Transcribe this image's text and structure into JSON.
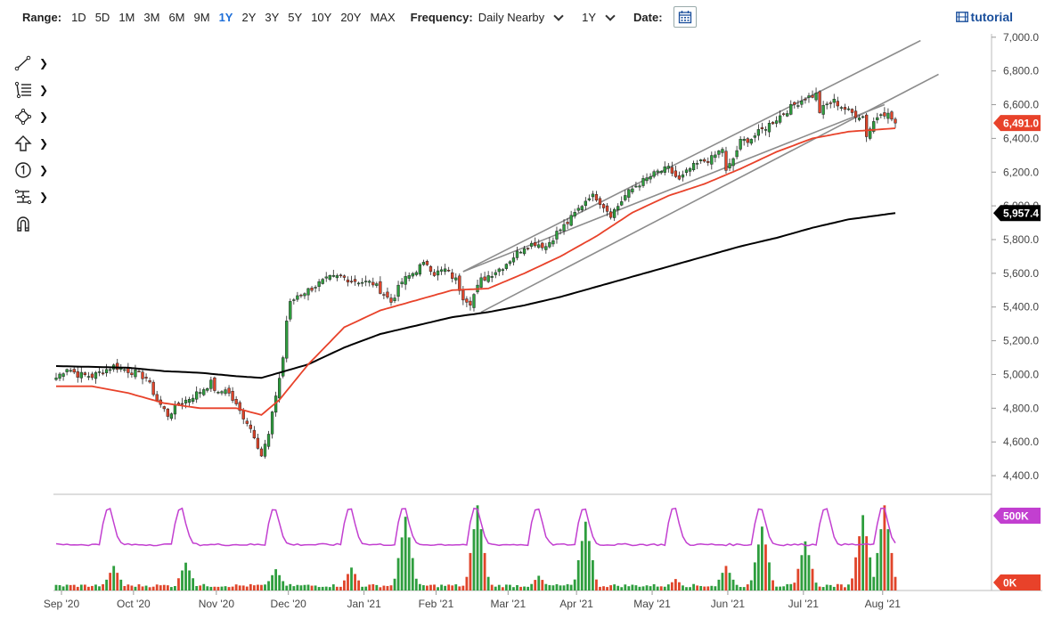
{
  "toolbar": {
    "range_label": "Range:",
    "ranges": [
      "1D",
      "5D",
      "1M",
      "3M",
      "6M",
      "9M",
      "1Y",
      "2Y",
      "3Y",
      "5Y",
      "10Y",
      "20Y",
      "MAX"
    ],
    "active_range": "1Y",
    "frequency_label": "Frequency:",
    "frequency_value": "Daily Nearby",
    "period_value": "1Y",
    "date_label": "Date:",
    "tutorial_label": "tutorial"
  },
  "colors": {
    "up": "#2e9e3e",
    "down": "#e0452a",
    "ma_fast": "#e8422a",
    "ma_slow": "#000000",
    "volume_line": "#c23fd0",
    "channel": "#8c8c8c",
    "last_price_badge": "#e8422a",
    "ma_badge": "#000000",
    "volume_badge": "#c23fd0",
    "active": "#1e6fd9"
  },
  "chart_data": {
    "type": "candlestick",
    "x_ticks": [
      "Sep '20",
      "Oct '20",
      "Nov '20",
      "Dec '20",
      "Jan '21",
      "Feb '21",
      "Mar '21",
      "Apr '21",
      "May '21",
      "Jun '21",
      "Jul '21",
      "Aug '21"
    ],
    "y_ticks": [
      "4,400.0",
      "4,600.0",
      "4,800.0",
      "5,000.0",
      "5,200.0",
      "5,400.0",
      "5,600.0",
      "5,800.0",
      "6,000.0",
      "6,200.0",
      "6,400.0",
      "6,600.0",
      "6,800.0",
      "7,000.0"
    ],
    "ylim": [
      4300,
      7020
    ],
    "last_price": "6,491.0",
    "ma_slow_last": "5,957.4",
    "volume_ticks": [
      "500K",
      "0K"
    ],
    "volume_max": 560000,
    "anchors": [
      [
        0,
        4980
      ],
      [
        3,
        5040
      ],
      [
        6,
        5000
      ],
      [
        10,
        4990
      ],
      [
        14,
        5030
      ],
      [
        16,
        5050
      ],
      [
        19,
        5030
      ],
      [
        22,
        5010
      ],
      [
        25,
        4980
      ],
      [
        28,
        4850
      ],
      [
        31,
        4760
      ],
      [
        34,
        4820
      ],
      [
        37,
        4860
      ],
      [
        40,
        4900
      ],
      [
        43,
        4950
      ],
      [
        45,
        4880
      ],
      [
        47,
        4920
      ],
      [
        49,
        4850
      ],
      [
        51,
        4780
      ],
      [
        53,
        4720
      ],
      [
        55,
        4640
      ],
      [
        57,
        4520
      ],
      [
        59,
        4640
      ],
      [
        61,
        4880
      ],
      [
        62,
        4980
      ],
      [
        63,
        5100
      ],
      [
        64,
        5320
      ],
      [
        65,
        5420
      ],
      [
        67,
        5470
      ],
      [
        70,
        5500
      ],
      [
        73,
        5540
      ],
      [
        76,
        5570
      ],
      [
        79,
        5580
      ],
      [
        82,
        5560
      ],
      [
        85,
        5550
      ],
      [
        88,
        5540
      ],
      [
        91,
        5480
      ],
      [
        93,
        5430
      ],
      [
        96,
        5550
      ],
      [
        99,
        5600
      ],
      [
        101,
        5640
      ],
      [
        103,
        5660
      ],
      [
        105,
        5600
      ],
      [
        108,
        5620
      ],
      [
        111,
        5560
      ],
      [
        113,
        5460
      ],
      [
        115,
        5430
      ],
      [
        118,
        5560
      ],
      [
        121,
        5600
      ],
      [
        124,
        5640
      ],
      [
        127,
        5700
      ],
      [
        130,
        5760
      ],
      [
        133,
        5780
      ],
      [
        136,
        5760
      ],
      [
        139,
        5840
      ],
      [
        142,
        5900
      ],
      [
        145,
        5980
      ],
      [
        148,
        6060
      ],
      [
        150,
        6050
      ],
      [
        152,
        6000
      ],
      [
        154,
        5950
      ],
      [
        156,
        6000
      ],
      [
        158,
        6060
      ],
      [
        161,
        6120
      ],
      [
        164,
        6160
      ],
      [
        167,
        6200
      ],
      [
        170,
        6220
      ],
      [
        173,
        6150
      ],
      [
        176,
        6220
      ],
      [
        179,
        6260
      ],
      [
        182,
        6280
      ],
      [
        185,
        6340
      ],
      [
        186,
        6200
      ],
      [
        188,
        6280
      ],
      [
        190,
        6380
      ],
      [
        193,
        6400
      ],
      [
        196,
        6450
      ],
      [
        199,
        6500
      ],
      [
        202,
        6550
      ],
      [
        205,
        6600
      ],
      [
        208,
        6640
      ],
      [
        211,
        6660
      ],
      [
        212,
        6560
      ],
      [
        214,
        6600
      ],
      [
        216,
        6620
      ],
      [
        218,
        6590
      ],
      [
        220,
        6560
      ],
      [
        222,
        6540
      ],
      [
        224,
        6530
      ],
      [
        225,
        6420
      ],
      [
        227,
        6500
      ],
      [
        229,
        6560
      ],
      [
        231,
        6540
      ],
      [
        233,
        6491
      ]
    ],
    "ma_fast": [
      [
        0,
        4930
      ],
      [
        10,
        4930
      ],
      [
        20,
        4890
      ],
      [
        30,
        4830
      ],
      [
        40,
        4800
      ],
      [
        50,
        4800
      ],
      [
        57,
        4760
      ],
      [
        62,
        4850
      ],
      [
        70,
        5060
      ],
      [
        80,
        5280
      ],
      [
        90,
        5380
      ],
      [
        100,
        5440
      ],
      [
        110,
        5500
      ],
      [
        120,
        5510
      ],
      [
        130,
        5600
      ],
      [
        140,
        5700
      ],
      [
        150,
        5820
      ],
      [
        160,
        5960
      ],
      [
        170,
        6060
      ],
      [
        180,
        6130
      ],
      [
        190,
        6220
      ],
      [
        200,
        6320
      ],
      [
        210,
        6400
      ],
      [
        220,
        6440
      ],
      [
        233,
        6460
      ]
    ],
    "ma_slow": [
      [
        0,
        5050
      ],
      [
        20,
        5040
      ],
      [
        30,
        5020
      ],
      [
        40,
        5010
      ],
      [
        50,
        4990
      ],
      [
        57,
        4980
      ],
      [
        70,
        5060
      ],
      [
        80,
        5160
      ],
      [
        90,
        5240
      ],
      [
        100,
        5290
      ],
      [
        110,
        5340
      ],
      [
        120,
        5370
      ],
      [
        130,
        5410
      ],
      [
        140,
        5460
      ],
      [
        150,
        5520
      ],
      [
        160,
        5580
      ],
      [
        170,
        5640
      ],
      [
        180,
        5700
      ],
      [
        190,
        5760
      ],
      [
        200,
        5810
      ],
      [
        210,
        5870
      ],
      [
        220,
        5920
      ],
      [
        233,
        5957
      ]
    ],
    "channel_lines": [
      {
        "x1": 113,
        "y1": 5610,
        "x2": 240,
        "y2": 6980
      },
      {
        "x1": 118,
        "y1": 5370,
        "x2": 245,
        "y2": 6780
      },
      {
        "x1": 113,
        "y1": 5610,
        "x2": 230,
        "y2": 6600
      }
    ],
    "volume_spikes": [
      [
        16,
        150000
      ],
      [
        36,
        170000
      ],
      [
        61,
        130000
      ],
      [
        82,
        140000
      ],
      [
        97,
        450000
      ],
      [
        117,
        520000
      ],
      [
        134,
        90000
      ],
      [
        147,
        420000
      ],
      [
        172,
        70000
      ],
      [
        186,
        150000
      ],
      [
        196,
        390000
      ],
      [
        208,
        300000
      ],
      [
        224,
        460000
      ],
      [
        230,
        520000
      ]
    ],
    "volume_line_peaks": [
      15,
      35,
      61,
      82,
      97,
      117,
      134,
      147,
      172,
      196,
      214,
      230
    ],
    "volume_baseline": 280000
  }
}
